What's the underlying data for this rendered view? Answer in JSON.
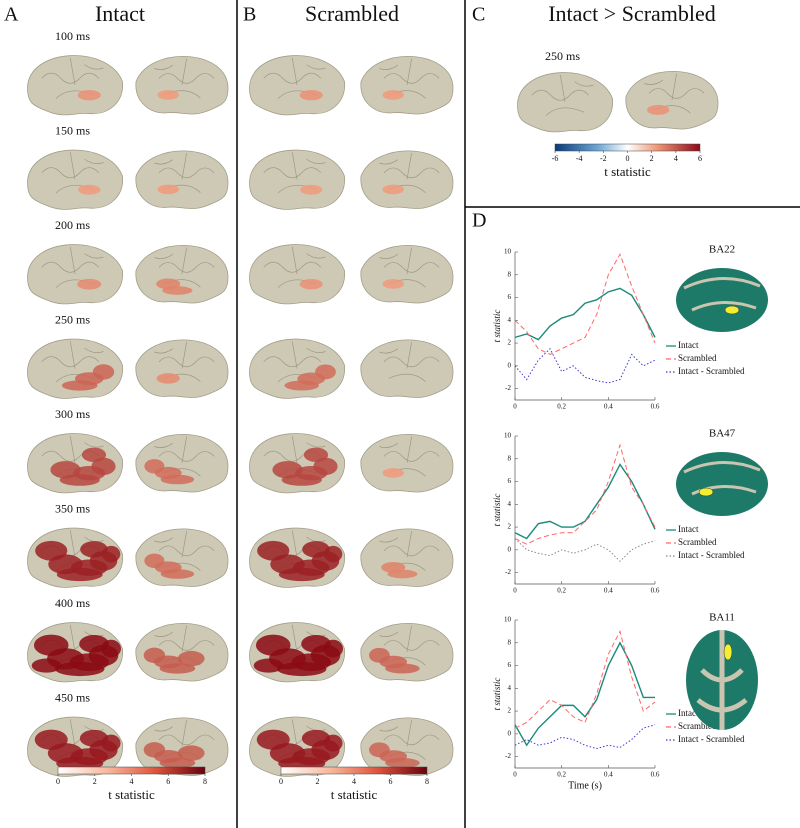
{
  "panels": [
    {
      "letter": "A",
      "title": "Intact",
      "times": [
        "100 ms",
        "150 ms",
        "200 ms",
        "250 ms",
        "300 ms",
        "350 ms",
        "400 ms",
        "450 ms"
      ],
      "colorbar": {
        "lim": [
          0,
          8
        ],
        "ticks": [
          0,
          2,
          4,
          6,
          8
        ],
        "label": "t statistic"
      }
    },
    {
      "letter": "B",
      "title": "Scrambled",
      "colorbar": {
        "lim": [
          0,
          8
        ],
        "ticks": [
          0,
          2,
          4,
          6,
          8
        ],
        "label": "t statistic"
      }
    },
    {
      "letter": "C",
      "title": "Intact > Scrambled",
      "time": "250 ms",
      "colorbar": {
        "lim": [
          -6,
          6
        ],
        "ticks": [
          -6,
          -4,
          -2,
          0,
          2,
          4,
          6
        ],
        "label": "t statistic"
      }
    },
    {
      "letter": "D"
    }
  ],
  "chart_data": [
    {
      "type": "line",
      "title": "BA22",
      "ylabel": "t statistic",
      "x": [
        0,
        0.05,
        0.1,
        0.15,
        0.2,
        0.25,
        0.3,
        0.35,
        0.4,
        0.45,
        0.5,
        0.55,
        0.6
      ],
      "xlim": [
        0,
        0.6
      ],
      "xticks": [
        0,
        0.2,
        0.4,
        0.6
      ],
      "ylim": [
        -3,
        10
      ],
      "yticks": [
        -2,
        0,
        2,
        4,
        6,
        8,
        10
      ],
      "series": [
        {
          "name": "Intact",
          "color": "#1a8a7a",
          "dash": "solid",
          "values": [
            2.5,
            2.8,
            2.3,
            3.5,
            4.2,
            4.5,
            5.5,
            5.8,
            6.5,
            6.8,
            6.2,
            4.5,
            2.5
          ]
        },
        {
          "name": "Scrambled",
          "color": "#ff6666",
          "dash": "dashed",
          "values": [
            4,
            3,
            1.5,
            1,
            1.5,
            2,
            2.5,
            4.5,
            8,
            9.8,
            7,
            4.5,
            2
          ]
        },
        {
          "name": "Intact - Scrambled",
          "color": "#3a3acc",
          "dash": "dotted",
          "values": [
            0,
            -1.2,
            0.5,
            1.5,
            -0.5,
            0,
            -1,
            -1.3,
            -1.5,
            -1.2,
            1,
            0,
            0.5
          ]
        }
      ]
    },
    {
      "type": "line",
      "title": "BA47",
      "ylabel": "t statistic",
      "x": [
        0,
        0.05,
        0.1,
        0.15,
        0.2,
        0.25,
        0.3,
        0.35,
        0.4,
        0.45,
        0.5,
        0.55,
        0.6
      ],
      "xlim": [
        0,
        0.6
      ],
      "xticks": [
        0,
        0.2,
        0.4,
        0.6
      ],
      "ylim": [
        -3,
        10
      ],
      "yticks": [
        -2,
        0,
        2,
        4,
        6,
        8,
        10
      ],
      "series": [
        {
          "name": "Intact",
          "color": "#1a8a7a",
          "dash": "solid",
          "values": [
            1.5,
            1,
            2.3,
            2.5,
            2,
            2,
            2.5,
            4,
            5.5,
            7.5,
            6,
            4,
            1.8
          ]
        },
        {
          "name": "Scrambled",
          "color": "#ff6666",
          "dash": "dashed",
          "values": [
            1,
            0.5,
            1,
            1.3,
            1.5,
            1.5,
            2.5,
            3.5,
            6,
            9.2,
            5.5,
            4,
            2
          ]
        },
        {
          "name": "Intact - Scrambled",
          "color": "#888888",
          "dash": "dotted",
          "values": [
            1,
            0,
            -0.3,
            -0.5,
            0,
            -0.3,
            0,
            0.5,
            0,
            -1,
            0,
            0.5,
            0.8
          ]
        }
      ]
    },
    {
      "type": "line",
      "title": "BA11",
      "ylabel": "t statistic",
      "xlabel": "Time (s)",
      "x": [
        0,
        0.05,
        0.1,
        0.15,
        0.2,
        0.25,
        0.3,
        0.35,
        0.4,
        0.45,
        0.5,
        0.55,
        0.6
      ],
      "xlim": [
        0,
        0.6
      ],
      "xticks": [
        0,
        0.2,
        0.4,
        0.6
      ],
      "ylim": [
        -3,
        10
      ],
      "yticks": [
        -2,
        0,
        2,
        4,
        6,
        8,
        10
      ],
      "series": [
        {
          "name": "Intact",
          "color": "#1a8a7a",
          "dash": "solid",
          "values": [
            0.8,
            -1,
            0.5,
            1.5,
            2.5,
            2.5,
            1.5,
            3,
            6,
            8,
            6,
            3.2,
            3.2
          ]
        },
        {
          "name": "Scrambled",
          "color": "#ff6666",
          "dash": "dashed",
          "values": [
            0.5,
            1,
            2,
            3,
            2.5,
            1.5,
            1,
            3.5,
            7,
            9,
            5,
            2,
            2.8
          ]
        },
        {
          "name": "Intact - Scrambled",
          "color": "#3a3acc",
          "dash": "dotted",
          "values": [
            -1,
            -0.5,
            -1,
            -0.8,
            -0.3,
            -0.5,
            -1,
            -1.3,
            -1,
            -1.2,
            -0.5,
            0.5,
            0.8
          ]
        }
      ]
    }
  ]
}
